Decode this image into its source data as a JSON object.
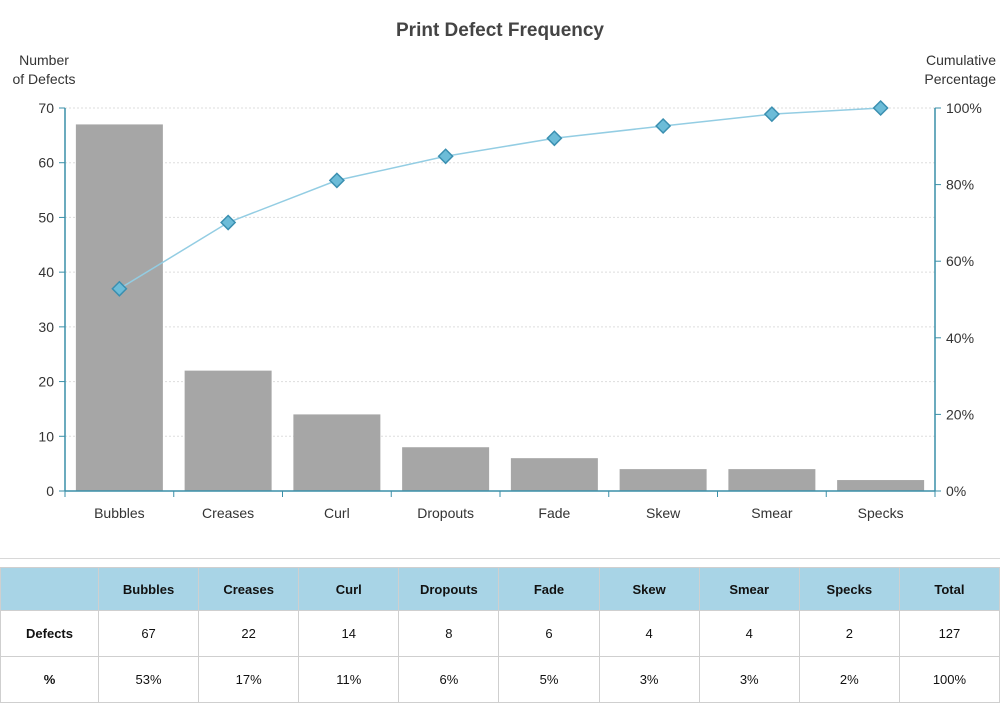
{
  "chart_data": {
    "type": "bar",
    "title": "Print Defect Frequency",
    "ylabel_lines": [
      "Number",
      "of Defects"
    ],
    "y2label_lines": [
      "Cumulative",
      "Percentage"
    ],
    "categories": [
      "Bubbles",
      "Creases",
      "Curl",
      "Dropouts",
      "Fade",
      "Skew",
      "Smear",
      "Specks"
    ],
    "series": [
      {
        "type": "bar",
        "values": [
          67,
          22,
          14,
          8,
          6,
          4,
          4,
          2
        ]
      },
      {
        "type": "line",
        "axis": "right",
        "values": [
          52.8,
          70.1,
          81.1,
          87.4,
          92.1,
          95.3,
          98.4,
          100
        ]
      }
    ],
    "ylim": [
      0,
      70
    ],
    "yticks": [
      "0",
      "10",
      "20",
      "30",
      "40",
      "50",
      "60",
      "70"
    ],
    "y2lim": [
      0,
      100
    ],
    "y2ticks": [
      "0%",
      "20%",
      "40%",
      "60%",
      "80%",
      "100%"
    ],
    "grid": true,
    "colors": {
      "bar": "#a6a6a6",
      "line": "#93cde3",
      "marker": "#6cbcd8",
      "marker_stroke": "#3a8fb0",
      "axis": "#3a8fa8",
      "grid": "#dddddd"
    }
  },
  "table": {
    "header_blank": "",
    "columns": [
      "Bubbles",
      "Creases",
      "Curl",
      "Dropouts",
      "Fade",
      "Skew",
      "Smear",
      "Specks",
      "Total"
    ],
    "rows": [
      {
        "label": "Defects",
        "cells": [
          "67",
          "22",
          "14",
          "8",
          "6",
          "4",
          "4",
          "2",
          "127"
        ]
      },
      {
        "label": "%",
        "cells": [
          "53%",
          "17%",
          "11%",
          "6%",
          "5%",
          "3%",
          "3%",
          "2%",
          "100%"
        ]
      }
    ],
    "header_color": "#a8d4e6"
  }
}
